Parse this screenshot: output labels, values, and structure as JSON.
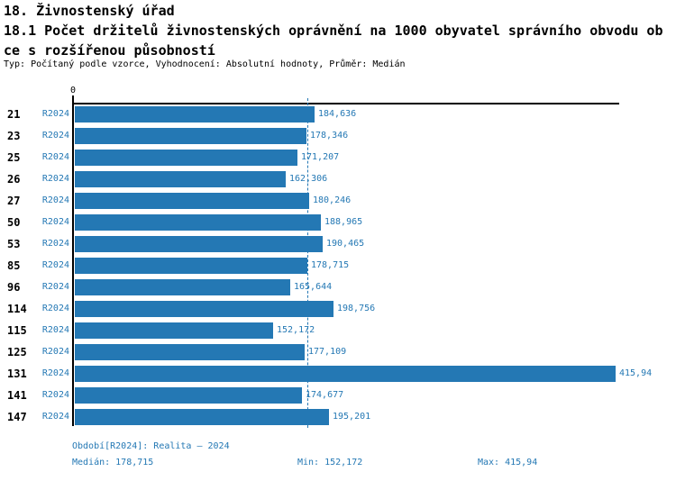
{
  "header": {
    "title": "18. Živnostenský úřad",
    "subtitle_line1": "18.1 Počet držitelů živnostenských oprávnění na 1000 obyvatel správního obvodu ob",
    "subtitle_line2": "ce s rozšířenou působností",
    "meta": "Typ: Počítaný podle vzorce, Vyhodnocení: Absolutní hodnoty, Průměr: Medián"
  },
  "chart_data": {
    "type": "bar",
    "orientation": "horizontal",
    "title": "18.1 Počet držitelů živnostenských oprávnění na 1000 obyvatel správního obvodu obce s rozšířenou působností",
    "series_name": "R2024",
    "axis_origin_label": "0",
    "grid": false,
    "legend_position": "none",
    "xlim": [
      0,
      420
    ],
    "categories": [
      "21",
      "23",
      "25",
      "26",
      "27",
      "50",
      "53",
      "85",
      "96",
      "114",
      "115",
      "125",
      "131",
      "141",
      "147"
    ],
    "rows": [
      {
        "category": "21",
        "period": "R2024",
        "value": 184.636,
        "value_label": "184,636"
      },
      {
        "category": "23",
        "period": "R2024",
        "value": 178.346,
        "value_label": "178,346"
      },
      {
        "category": "25",
        "period": "R2024",
        "value": 171.207,
        "value_label": "171,207"
      },
      {
        "category": "26",
        "period": "R2024",
        "value": 162.306,
        "value_label": "162,306"
      },
      {
        "category": "27",
        "period": "R2024",
        "value": 180.246,
        "value_label": "180,246"
      },
      {
        "category": "50",
        "period": "R2024",
        "value": 188.965,
        "value_label": "188,965"
      },
      {
        "category": "53",
        "period": "R2024",
        "value": 190.465,
        "value_label": "190,465"
      },
      {
        "category": "85",
        "period": "R2024",
        "value": 178.715,
        "value_label": "178,715"
      },
      {
        "category": "96",
        "period": "R2024",
        "value": 165.644,
        "value_label": "165,644"
      },
      {
        "category": "114",
        "period": "R2024",
        "value": 198.756,
        "value_label": "198,756"
      },
      {
        "category": "115",
        "period": "R2024",
        "value": 152.172,
        "value_label": "152,172"
      },
      {
        "category": "125",
        "period": "R2024",
        "value": 177.109,
        "value_label": "177,109"
      },
      {
        "category": "131",
        "period": "R2024",
        "value": 415.94,
        "value_label": "415,94"
      },
      {
        "category": "141",
        "period": "R2024",
        "value": 174.677,
        "value_label": "174,677"
      },
      {
        "category": "147",
        "period": "R2024",
        "value": 195.201,
        "value_label": "195,201"
      }
    ],
    "median_value": 178.715,
    "min_value": 152.172,
    "max_value": 415.94,
    "bar_color": "#2478b4",
    "median_line_color": "#2478b4"
  },
  "footer": {
    "period_line": "Období[R2024]: Realita – 2024",
    "median_label": "Medián: 178,715",
    "min_label": "Min: 152,172",
    "max_label": "Max: 415,94"
  },
  "colors": {
    "accent": "#2478b4",
    "axis": "#000000",
    "text": "#000000",
    "background": "#ffffff"
  }
}
